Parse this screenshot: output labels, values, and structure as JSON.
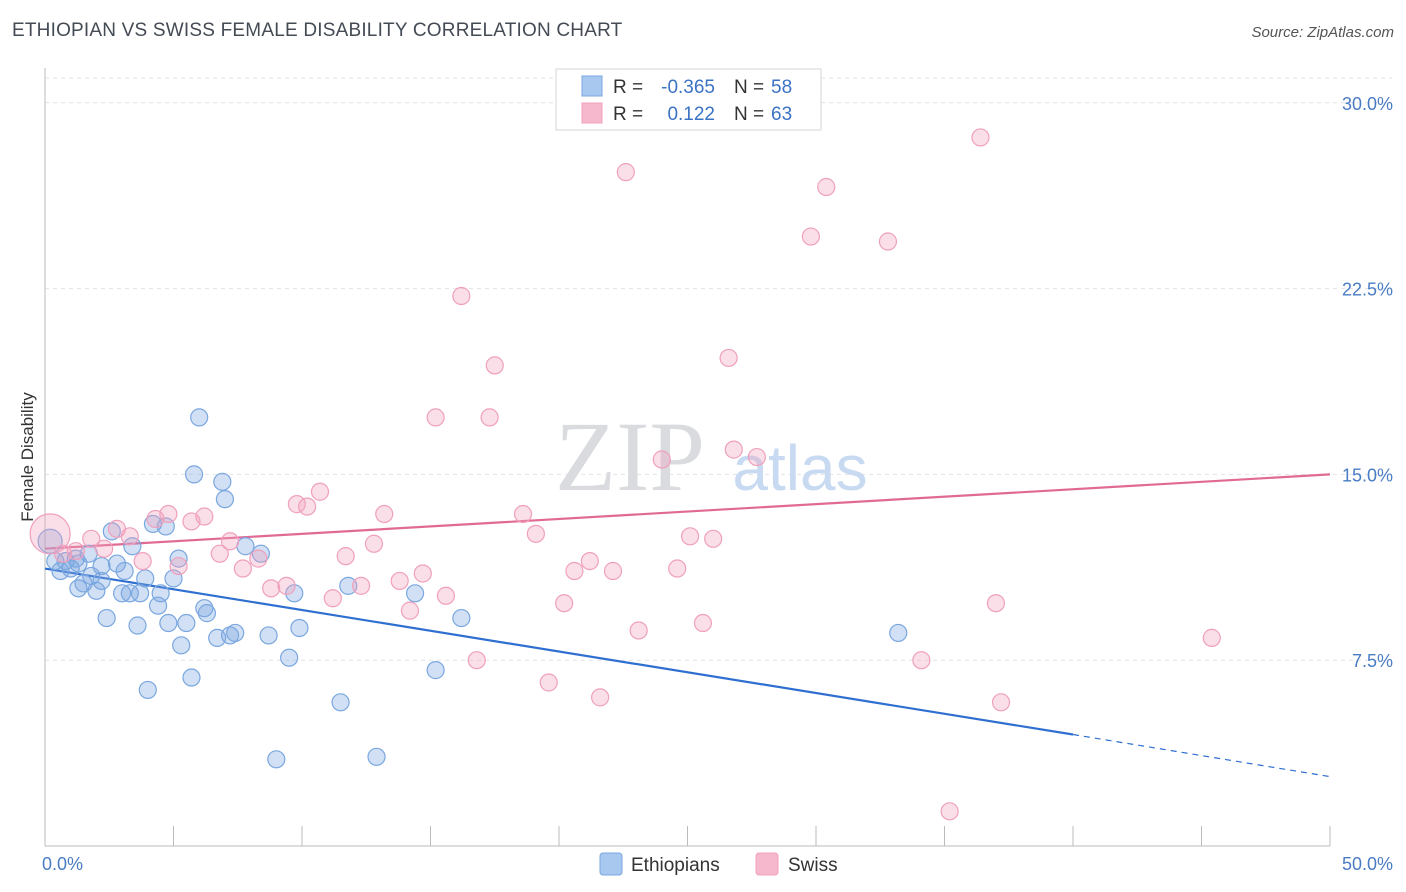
{
  "header": {
    "title": "ETHIOPIAN VS SWISS FEMALE DISABILITY CORRELATION CHART",
    "source": "Source: ZipAtlas.com"
  },
  "watermark": {
    "zip": "ZIP",
    "atlas": "atlas"
  },
  "legend": {
    "rows": [
      {
        "r_label": "R =",
        "r_value": "-0.365",
        "n_label": "N =",
        "n_value": "58",
        "color": "#a8c8f0"
      },
      {
        "r_label": "R =",
        "r_value": "0.122",
        "n_label": "N =",
        "n_value": "63",
        "color": "#f5b8cc"
      }
    ]
  },
  "chart_data": {
    "type": "scatter",
    "title": "ETHIOPIAN VS SWISS FEMALE DISABILITY CORRELATION CHART",
    "xlabel": "",
    "ylabel": "Female Disability",
    "xlim": [
      0,
      50
    ],
    "ylim": [
      0,
      31
    ],
    "x_tick_labels": [
      "0.0%",
      "50.0%"
    ],
    "y_ticks": [
      7.5,
      15.0,
      22.5,
      30.0
    ],
    "y_tick_labels": [
      "7.5%",
      "15.0%",
      "22.5%",
      "30.0%"
    ],
    "grid": "horizontal dashed",
    "legend_position": "top-center",
    "series": [
      {
        "name": "Ethiopians",
        "color": "#7aa7e0",
        "trend_color": "#2f6fd0",
        "trend": {
          "x0": 0,
          "y0": 11.2,
          "x1": 40,
          "y1": 4.5,
          "dashed_to_x": 50,
          "dashed_to_y": 2.8
        },
        "points": [
          [
            0.2,
            12.3
          ],
          [
            0.4,
            11.5
          ],
          [
            0.6,
            11.1
          ],
          [
            0.8,
            11.5
          ],
          [
            1.0,
            11.2
          ],
          [
            1.2,
            11.6
          ],
          [
            1.3,
            10.4
          ],
          [
            1.5,
            10.6
          ],
          [
            1.7,
            11.8
          ],
          [
            1.8,
            10.9
          ],
          [
            2.0,
            10.3
          ],
          [
            2.2,
            10.7
          ],
          [
            2.2,
            11.3
          ],
          [
            2.4,
            9.2
          ],
          [
            2.6,
            12.7
          ],
          [
            2.8,
            11.4
          ],
          [
            3.0,
            10.2
          ],
          [
            3.1,
            11.1
          ],
          [
            3.3,
            10.2
          ],
          [
            3.4,
            12.1
          ],
          [
            3.6,
            8.9
          ],
          [
            3.7,
            10.2
          ],
          [
            3.9,
            10.8
          ],
          [
            4.0,
            6.3
          ],
          [
            4.2,
            13.0
          ],
          [
            4.4,
            9.7
          ],
          [
            4.5,
            10.2
          ],
          [
            4.7,
            12.9
          ],
          [
            4.8,
            9.0
          ],
          [
            5.0,
            10.8
          ],
          [
            5.2,
            11.6
          ],
          [
            5.3,
            8.1
          ],
          [
            5.5,
            9.0
          ],
          [
            5.7,
            6.8
          ],
          [
            5.8,
            15.0
          ],
          [
            6.0,
            17.3
          ],
          [
            6.2,
            9.6
          ],
          [
            6.3,
            9.4
          ],
          [
            6.7,
            8.4
          ],
          [
            6.9,
            14.7
          ],
          [
            7.0,
            14.0
          ],
          [
            7.2,
            8.5
          ],
          [
            7.4,
            8.6
          ],
          [
            7.8,
            12.1
          ],
          [
            8.4,
            11.8
          ],
          [
            8.7,
            8.5
          ],
          [
            9.0,
            3.5
          ],
          [
            9.5,
            7.6
          ],
          [
            9.7,
            10.2
          ],
          [
            9.9,
            8.8
          ],
          [
            11.5,
            5.8
          ],
          [
            11.8,
            10.5
          ],
          [
            12.9,
            3.6
          ],
          [
            14.4,
            10.2
          ],
          [
            15.2,
            7.1
          ],
          [
            16.2,
            9.2
          ],
          [
            33.2,
            8.6
          ],
          [
            1.3,
            11.4
          ]
        ]
      },
      {
        "name": "Swiss",
        "color": "#f0a0bc",
        "trend_color": "#e06a94",
        "trend": {
          "x0": 0,
          "y0": 12.0,
          "x1": 50,
          "y1": 15.0
        },
        "points": [
          [
            0.2,
            12.6
          ],
          [
            0.7,
            11.8
          ],
          [
            1.2,
            11.9
          ],
          [
            1.8,
            12.4
          ],
          [
            2.3,
            12.0
          ],
          [
            2.8,
            12.8
          ],
          [
            3.3,
            12.5
          ],
          [
            3.8,
            11.5
          ],
          [
            4.3,
            13.2
          ],
          [
            4.8,
            13.4
          ],
          [
            5.2,
            11.3
          ],
          [
            5.7,
            13.1
          ],
          [
            6.2,
            13.3
          ],
          [
            6.8,
            11.8
          ],
          [
            7.2,
            12.3
          ],
          [
            7.7,
            11.2
          ],
          [
            8.3,
            11.6
          ],
          [
            8.8,
            10.4
          ],
          [
            9.4,
            10.5
          ],
          [
            9.8,
            13.8
          ],
          [
            10.2,
            13.7
          ],
          [
            10.7,
            14.3
          ],
          [
            11.2,
            10.0
          ],
          [
            11.7,
            11.7
          ],
          [
            12.3,
            10.5
          ],
          [
            12.8,
            12.2
          ],
          [
            13.2,
            13.4
          ],
          [
            13.8,
            10.7
          ],
          [
            14.2,
            9.5
          ],
          [
            14.7,
            11.0
          ],
          [
            15.2,
            17.3
          ],
          [
            15.6,
            10.1
          ],
          [
            16.2,
            22.2
          ],
          [
            16.8,
            7.5
          ],
          [
            17.3,
            17.3
          ],
          [
            17.5,
            19.4
          ],
          [
            18.6,
            13.4
          ],
          [
            19.1,
            12.6
          ],
          [
            19.6,
            6.6
          ],
          [
            20.2,
            9.8
          ],
          [
            20.6,
            11.1
          ],
          [
            21.2,
            11.5
          ],
          [
            21.6,
            6.0
          ],
          [
            22.1,
            11.1
          ],
          [
            22.6,
            27.2
          ],
          [
            23.1,
            8.7
          ],
          [
            24.0,
            15.6
          ],
          [
            24.6,
            11.2
          ],
          [
            25.1,
            12.5
          ],
          [
            25.6,
            9.0
          ],
          [
            26.0,
            12.4
          ],
          [
            26.6,
            19.7
          ],
          [
            26.8,
            16.0
          ],
          [
            27.7,
            15.7
          ],
          [
            29.8,
            24.6
          ],
          [
            30.4,
            26.6
          ],
          [
            32.8,
            24.4
          ],
          [
            34.1,
            7.5
          ],
          [
            35.2,
            1.4
          ],
          [
            36.4,
            28.6
          ],
          [
            37.0,
            9.8
          ],
          [
            37.2,
            5.8
          ],
          [
            45.4,
            8.4
          ]
        ]
      }
    ]
  },
  "bottom_legend": {
    "items": [
      {
        "label": "Ethiopians",
        "color": "#a8c8f0"
      },
      {
        "label": "Swiss",
        "color": "#f5b8cc"
      }
    ]
  }
}
